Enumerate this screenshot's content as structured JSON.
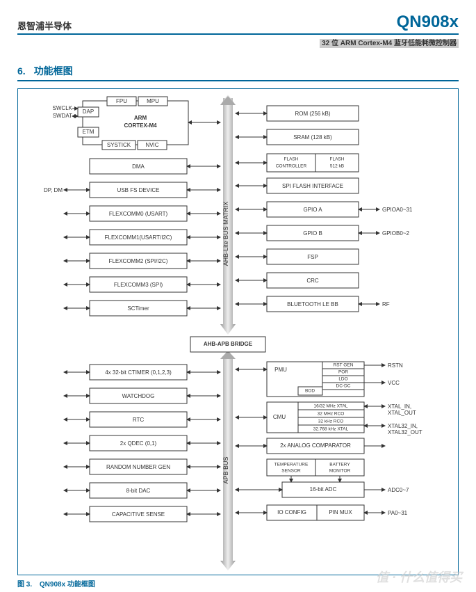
{
  "header": {
    "company": "恩智浦半导体",
    "product": "QN908x",
    "subtitle": "32 位 ARM Cortex-M4 蓝牙低能耗微控制器"
  },
  "section": {
    "num": "6.",
    "title": "功能框图"
  },
  "figure": {
    "label": "图 3.",
    "caption": "QN908x 功能框图"
  },
  "watermark": "值 · 什么值得买",
  "colors": {
    "accent": "#006699",
    "bus_outer": "#999999",
    "bus_inner": "#dddddd",
    "border": "#333333"
  },
  "diagram": {
    "cpu": {
      "main": "ARM\nCORTEX-M4",
      "cells": [
        "FPU",
        "MPU",
        "DAP",
        "ETM",
        "SYSTICK",
        "NVIC"
      ]
    },
    "external_left": [
      "SWCLK",
      "SWDAT",
      "DP, DM"
    ],
    "external_right": [
      "GPIOA0~31",
      "GPIOB0~2",
      "RF",
      "RSTN",
      "VCC",
      "XTAL_IN,\nXTAL_OUT",
      "XTAL32_IN,\nXTAL32_OUT",
      "ADC0~7",
      "PA0~31"
    ],
    "bus_top": "AHB-Lite  BUS  MATRIX",
    "bus_bottom": "APB  BUS",
    "bridge": "AHB-APB BRIDGE",
    "left_blocks": [
      "DMA",
      "USB FS DEVICE",
      "FLEXCOMM0 (USART)",
      "FLEXCOMM1(USART/I2C)",
      "FLEXCOMM2 (SPI/I2C)",
      "FLEXCOMM3 (SPI)",
      "SCTimer"
    ],
    "right_blocks": [
      "ROM (256 kB)",
      "SRAM (128 kB)",
      "SPI FLASH INTERFACE",
      "GPIO A",
      "GPIO B",
      "FSP",
      "CRC",
      "BLUETOOTH LE BB"
    ],
    "flash": {
      "a": "FLASH\nCONTROLLER",
      "b": "FLASH\n512 kB"
    },
    "apb_left": [
      "4x 32-bit CTIMER (0,1,2,3)",
      "WATCHDOG",
      "RTC",
      "2x QDEC (0,1)",
      "RANDOM NUMBER GEN",
      "8-bit DAC",
      "CAPACITIVE SENSE"
    ],
    "pmu": {
      "label": "PMU",
      "cells": [
        "RST GEN",
        "POR",
        "LDO",
        "DC-DC",
        "BOD"
      ]
    },
    "cmu": {
      "label": "CMU",
      "cells": [
        "16/32 MHz XTAL",
        "32 MHz RCO",
        "32 kHz RCO",
        "32.768 kHz XTAL"
      ]
    },
    "analog_cmp": "2x ANALOG COMPARATOR",
    "sensors": {
      "temp": "TEMPERATURE\nSENSOR",
      "batt": "BATTERY\nMONITOR"
    },
    "adc": "16-bit ADC",
    "ioconfig": {
      "a": "IO CONFIG",
      "b": "PIN MUX"
    }
  }
}
